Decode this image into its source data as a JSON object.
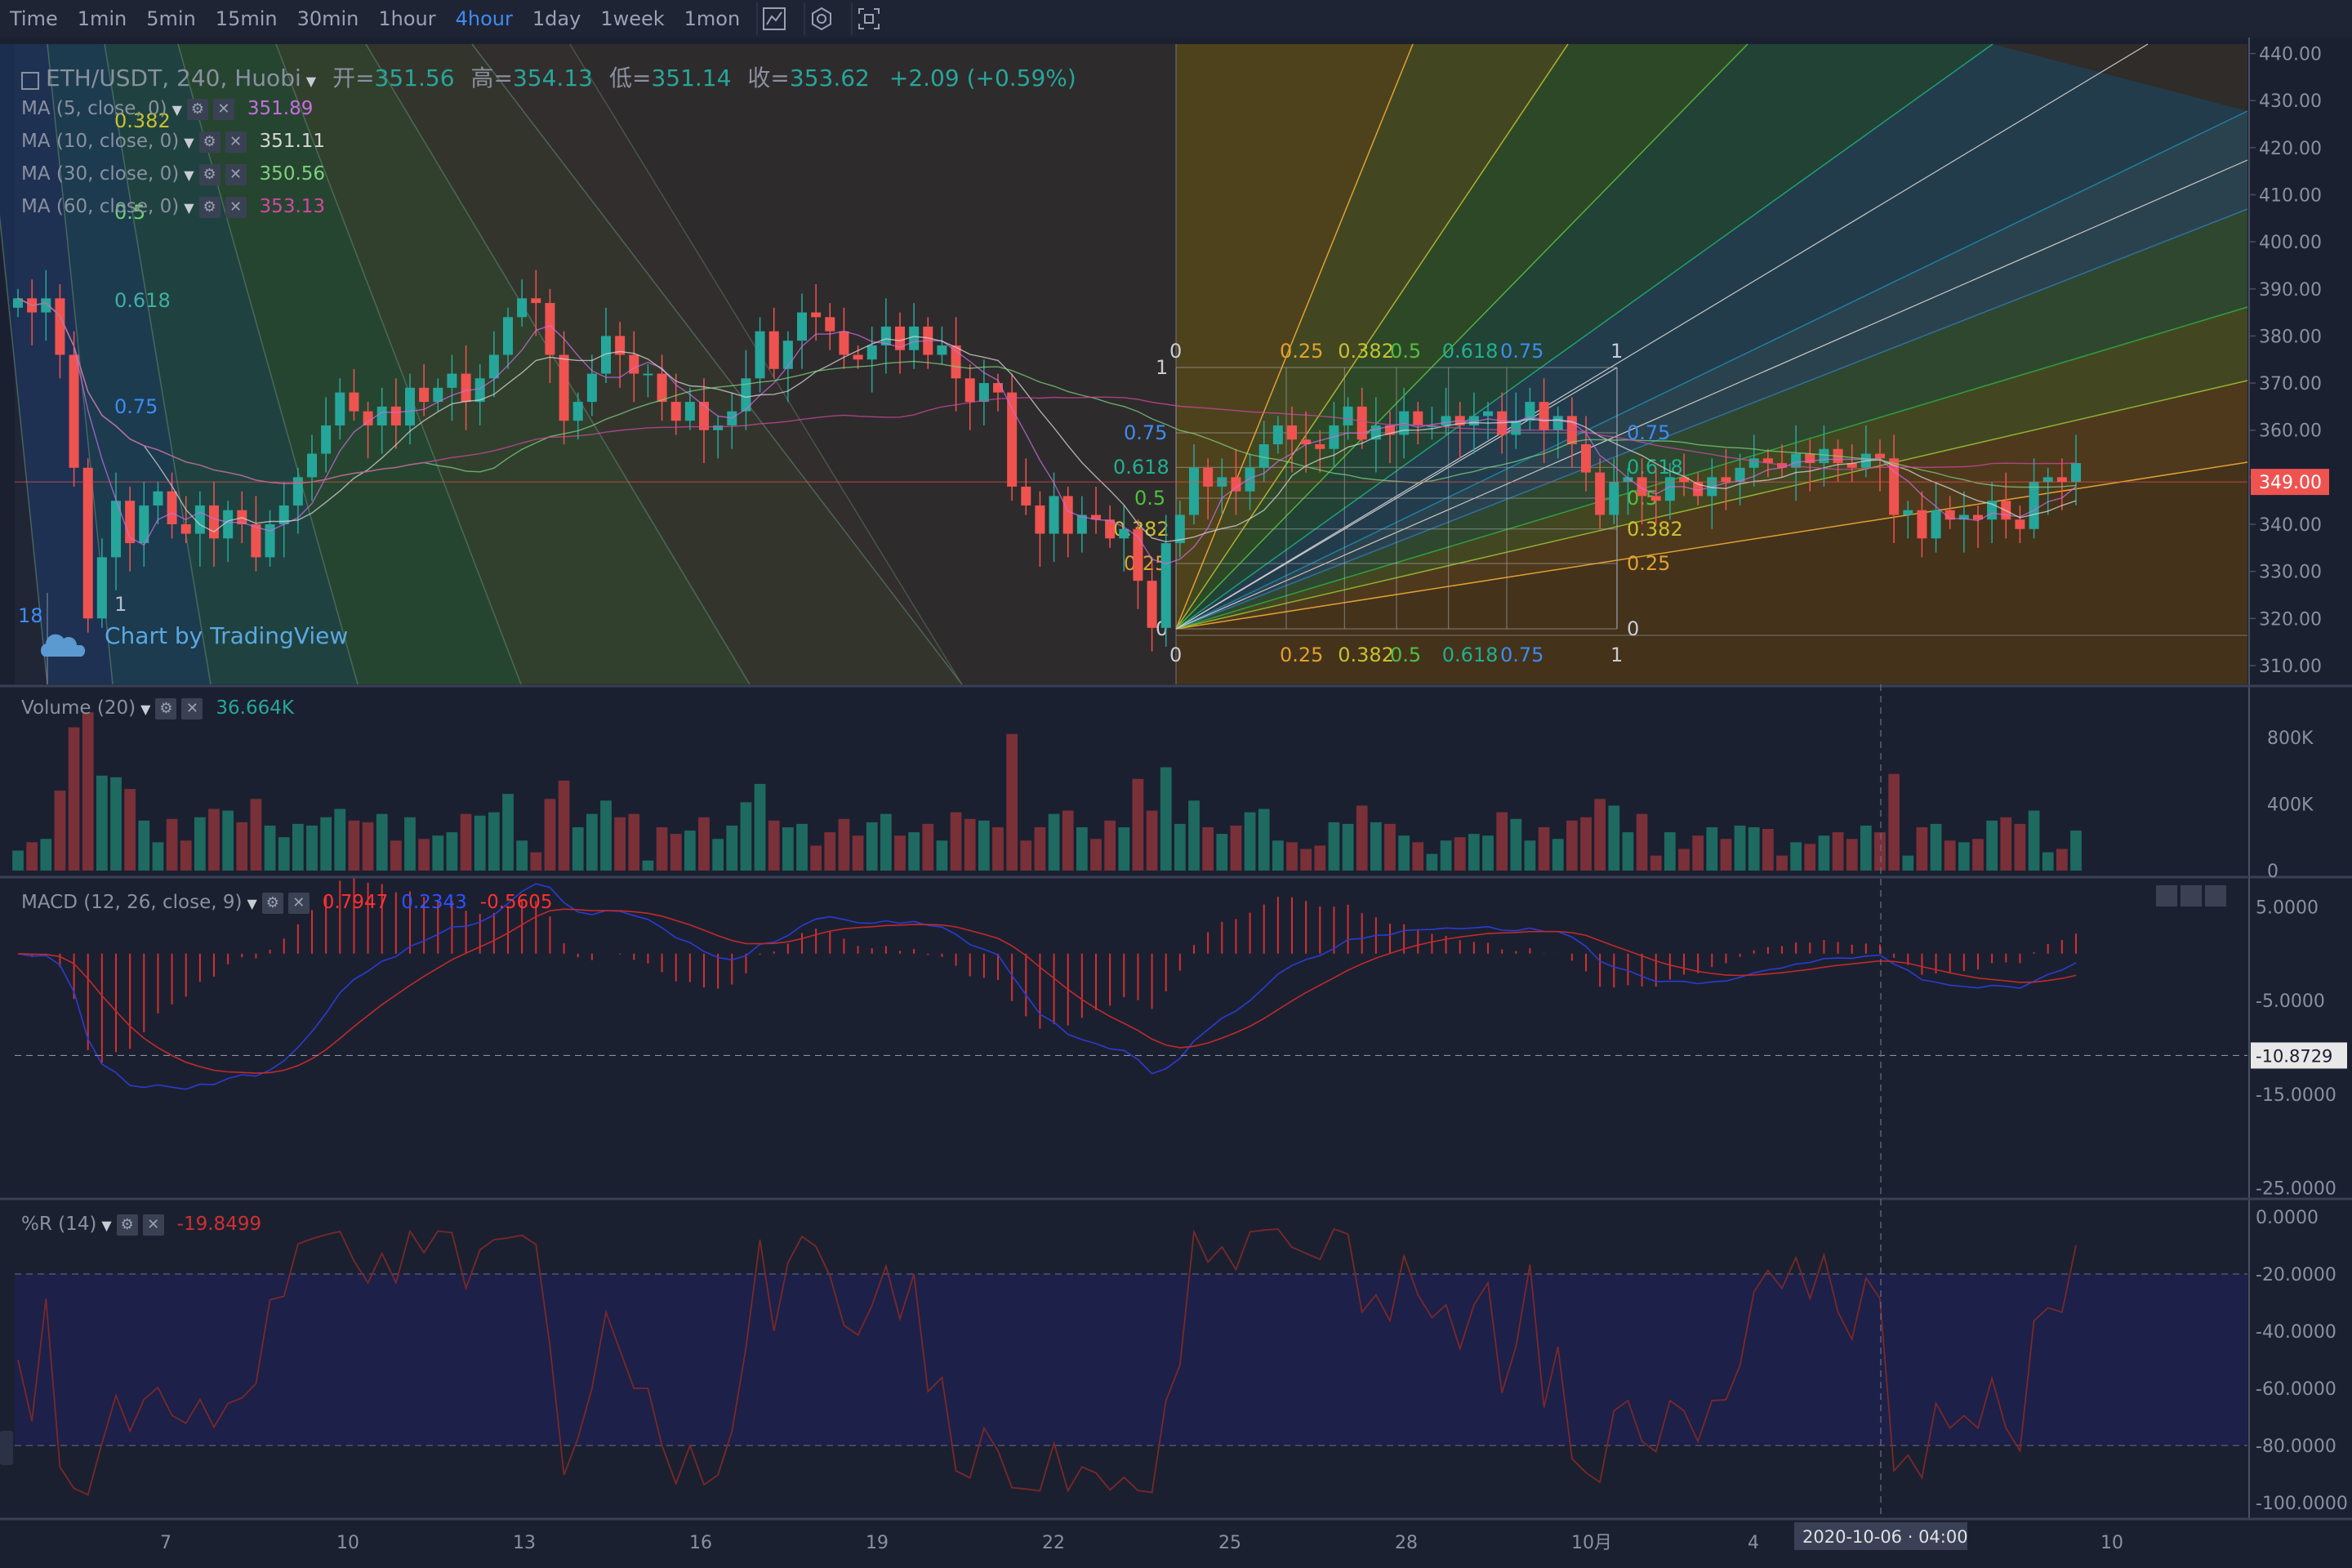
{
  "toolbar": {
    "timeframes": [
      "Time",
      "1min",
      "5min",
      "15min",
      "30min",
      "1hour",
      "4hour",
      "1day",
      "1week",
      "1mon"
    ],
    "active": "4hour",
    "icons": [
      "indicators-icon",
      "settings-icon",
      "screenshot-icon"
    ]
  },
  "main": {
    "symbol": "ETH/USDT, 240, Huobi",
    "ohlc": [
      {
        "label": "开=",
        "value": "351.56"
      },
      {
        "label": "高=",
        "value": "354.13"
      },
      {
        "label": "低=",
        "value": "351.14"
      },
      {
        "label": "收=",
        "value": "353.62"
      }
    ],
    "change": "+2.09 (+0.59%)",
    "ma": [
      {
        "label": "MA (5, close, 0)",
        "value": "351.89",
        "color": "#c86ee0"
      },
      {
        "label": "MA (10, close, 0)",
        "value": "351.11",
        "color": "#d6d6d6"
      },
      {
        "label": "MA (30, close, 0)",
        "value": "350.56",
        "color": "#7fd07f"
      },
      {
        "label": "MA (60, close, 0)",
        "value": "353.13",
        "color": "#d04aa0"
      }
    ],
    "price_label": "349.00",
    "watermark": "Chart by TradingView"
  },
  "volume": {
    "label": "Volume (20)",
    "value": "36.664K",
    "axis": [
      "800K",
      "400K",
      "0"
    ]
  },
  "macd": {
    "label": "MACD (12, 26, close, 9)",
    "values": [
      "0.7947",
      "0.2343",
      "-0.5605"
    ],
    "value_colors": [
      "#ff3030",
      "#3050ff",
      "#ff3030"
    ],
    "axis": [
      "5.0000",
      "-5.0000",
      "-15.0000",
      "-25.0000"
    ],
    "level_label": "-10.8729"
  },
  "wr": {
    "label": "%R (14)",
    "value": "-19.8499",
    "axis": [
      "0.0000",
      "-20.0000",
      "-40.0000",
      "-60.0000",
      "-80.0000",
      "-100.0000"
    ]
  },
  "crosshair_label": "2020-10-06 · 04:00",
  "fib_labels": {
    "left_fan": [
      "0.382",
      "0.5",
      "0.618",
      "0.75",
      "18",
      "1"
    ],
    "grid_top": [
      "0",
      "0.25",
      "0.382",
      "0.5",
      "0.618",
      "0.75",
      "1"
    ],
    "grid_left": [
      "1",
      "0.75",
      "0.618",
      "0.5",
      "0.382",
      "0.25",
      "0"
    ],
    "grid_right": [
      "0.75",
      "0.618",
      "0.5",
      "0.382",
      "0.25",
      "0"
    ]
  },
  "chart_data": {
    "type": "candlestick",
    "title": "ETH/USDT, 240, Huobi",
    "y_ticks": [
      440,
      430,
      420,
      410,
      400,
      390,
      380,
      370,
      360,
      350,
      340,
      330,
      320,
      310
    ],
    "ylim": [
      306,
      442
    ],
    "x_ticks": [
      "7",
      "10",
      "13",
      "16",
      "19",
      "22",
      "25",
      "28",
      "10月",
      "4",
      "7",
      "10"
    ],
    "close": [
      388,
      385,
      388,
      376,
      352,
      320,
      333,
      345,
      336,
      344,
      347,
      340,
      338,
      344,
      337,
      343,
      340,
      333,
      340,
      344,
      350,
      355,
      361,
      368,
      364,
      361,
      365,
      361,
      369,
      366,
      369,
      372,
      366,
      371,
      376,
      384,
      388,
      387,
      376,
      362,
      366,
      372,
      380,
      376,
      372,
      372,
      366,
      362,
      366,
      360,
      361,
      364,
      371,
      381,
      373,
      379,
      385,
      384,
      381,
      376,
      375,
      378,
      382,
      377,
      382,
      376,
      378,
      371,
      366,
      370,
      368,
      348,
      344,
      338,
      346,
      338,
      342,
      341,
      337,
      339,
      328,
      318,
      336,
      342,
      352,
      348,
      350,
      347,
      352,
      357,
      361,
      358,
      357,
      356,
      361,
      365,
      358,
      361,
      359,
      364,
      361,
      361,
      363,
      361,
      363,
      364,
      359,
      362,
      366,
      360,
      363,
      357,
      351,
      342,
      349,
      350,
      346,
      345,
      350,
      349,
      346,
      350,
      349,
      352,
      354,
      353,
      352,
      355,
      353,
      356,
      353,
      352,
      355,
      354,
      342,
      343,
      337,
      343,
      341,
      342,
      341,
      345,
      341,
      339,
      349,
      350,
      349,
      353
    ]
  }
}
